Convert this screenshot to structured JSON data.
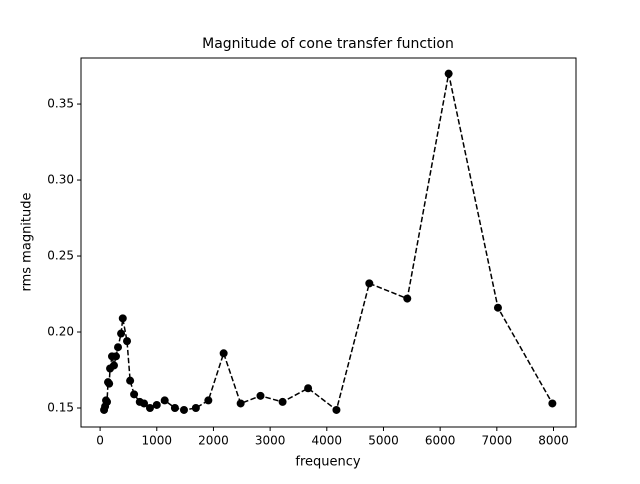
{
  "chart_data": {
    "type": "line",
    "title": "Magnitude of cone transfer function",
    "xlabel": "frequency",
    "ylabel": "rms magnitude",
    "x": [
      70,
      88,
      105,
      122,
      140,
      160,
      176,
      210,
      245,
      280,
      316,
      370,
      400,
      475,
      530,
      600,
      700,
      775,
      880,
      1000,
      1140,
      1320,
      1480,
      1690,
      1910,
      2180,
      2480,
      2830,
      3220,
      3670,
      4170,
      4750,
      5420,
      6150,
      7020,
      7980
    ],
    "values": [
      0.1487,
      0.151,
      0.155,
      0.154,
      0.167,
      0.166,
      0.176,
      0.184,
      0.178,
      0.184,
      0.19,
      0.199,
      0.209,
      0.194,
      0.168,
      0.159,
      0.154,
      0.153,
      0.15,
      0.152,
      0.155,
      0.15,
      0.1487,
      0.15,
      0.155,
      0.186,
      0.153,
      0.158,
      0.154,
      0.163,
      0.1487,
      0.232,
      0.222,
      0.37,
      0.216,
      0.153
    ],
    "color": "#000000",
    "linestyle": "dashed",
    "marker": "circle",
    "xlim": [
      -337,
      8397
    ],
    "ylim": [
      0.1375,
      0.3803
    ],
    "xticks": [
      0,
      1000,
      2000,
      3000,
      4000,
      5000,
      6000,
      7000,
      8000
    ],
    "yticks": [
      0.15,
      {
        "value": 0.2,
        "label": "0.20"
      },
      0.25,
      {
        "value": 0.3,
        "label": "0.30"
      },
      0.35
    ]
  }
}
